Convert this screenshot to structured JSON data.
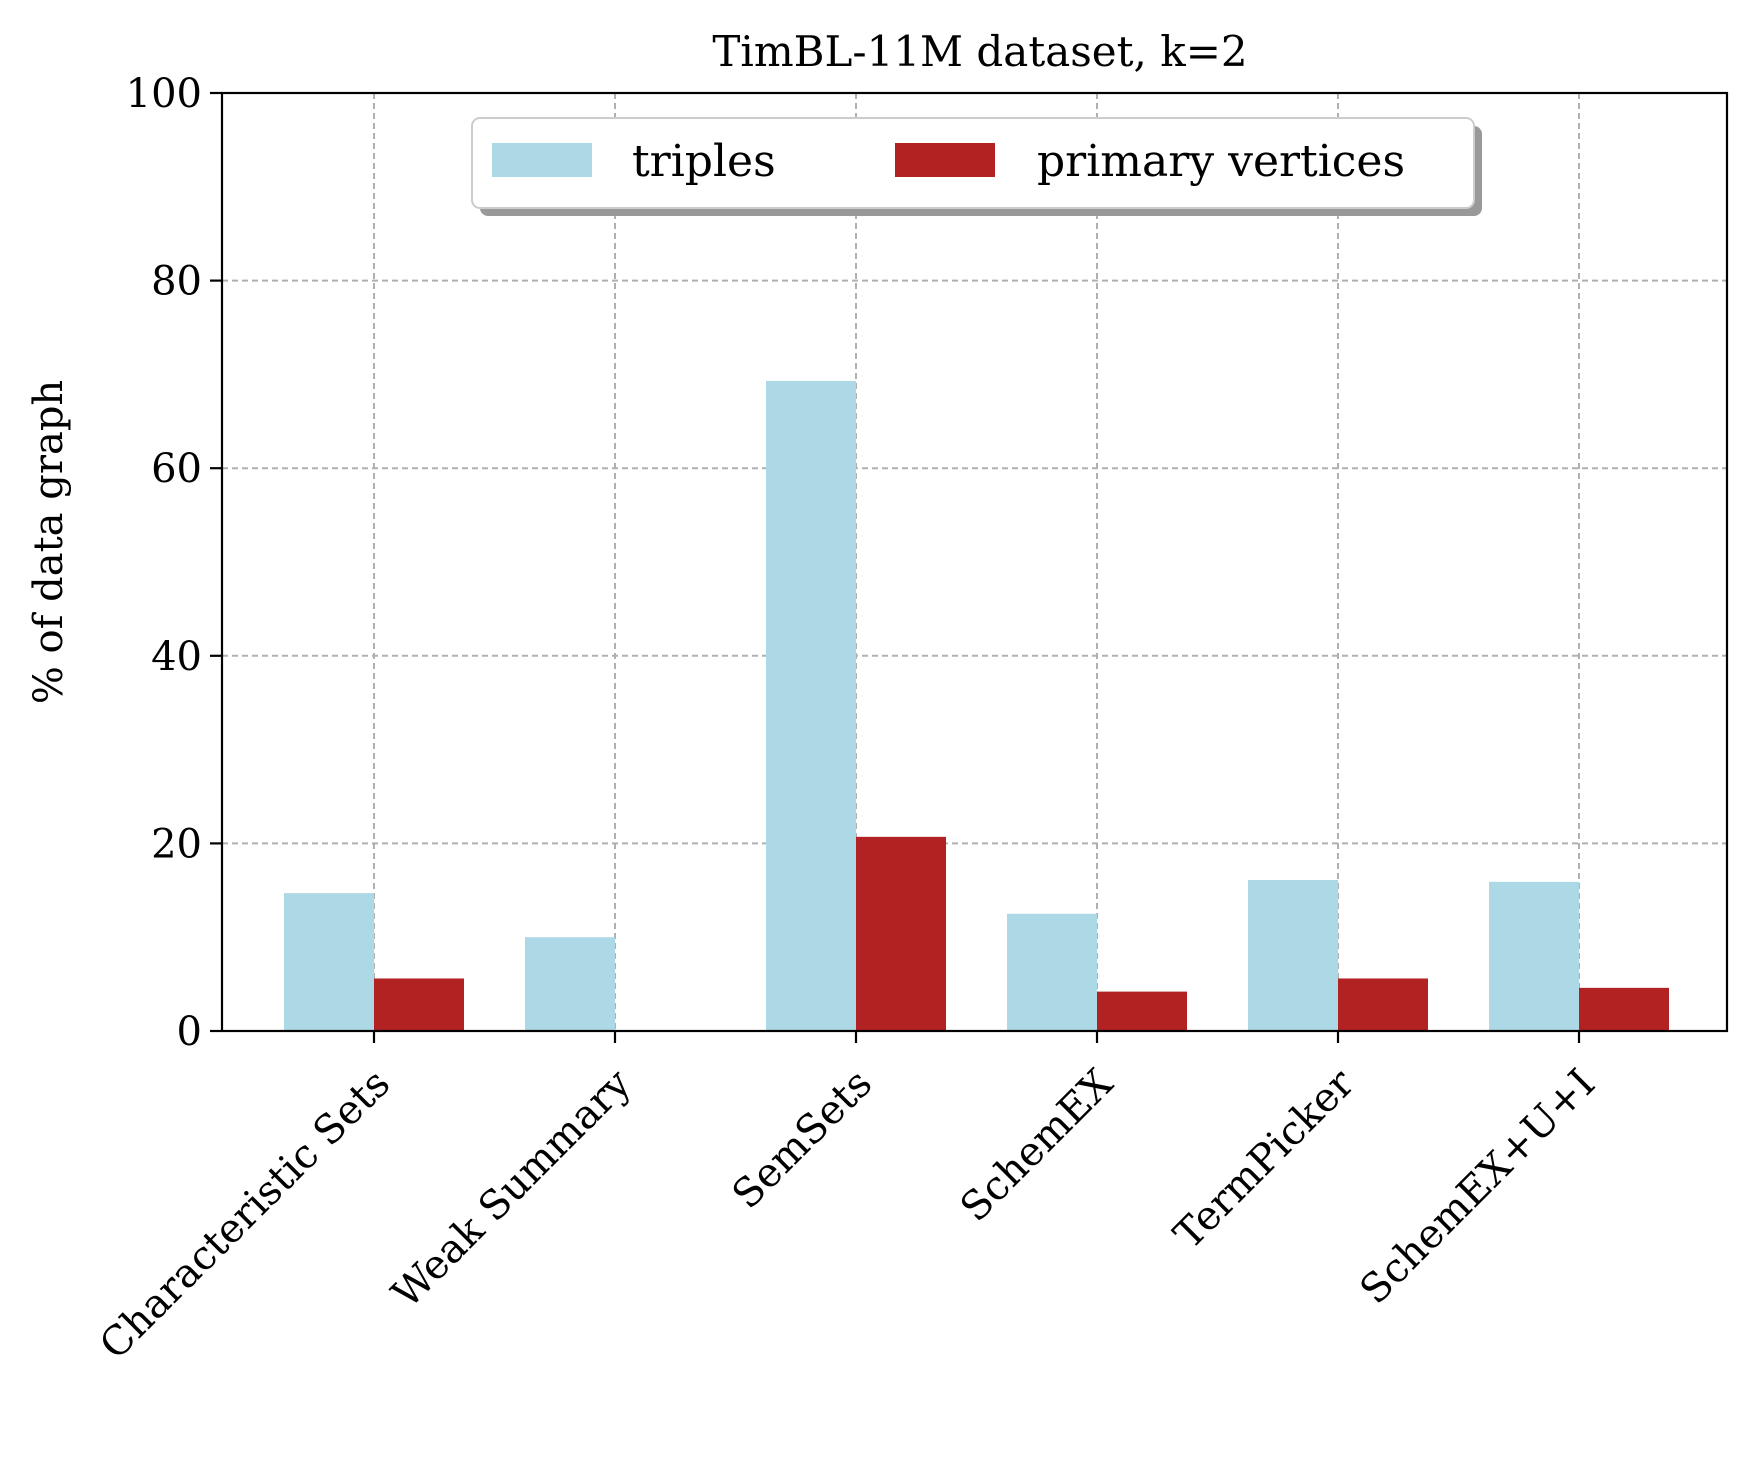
{
  "chart_data": {
    "type": "bar",
    "title": "TimBL-11M dataset, k=2",
    "xlabel": "",
    "ylabel": "% of data graph",
    "ylim": [
      0,
      100
    ],
    "yticks": [
      "0",
      "20",
      "40",
      "60",
      "80",
      "100"
    ],
    "grid": true,
    "legend_position": "top-center",
    "categories": [
      "Characteristic Sets",
      "Weak Summary",
      "SemSets",
      "SchemEX",
      "TermPicker",
      "SchemEX+U+I"
    ],
    "series": [
      {
        "name": "triples",
        "color": "#add8e6",
        "values": [
          14.7,
          10.0,
          69.3,
          12.5,
          16.1,
          15.9
        ]
      },
      {
        "name": "primary vertices",
        "color": "#b22222",
        "values": [
          5.6,
          0,
          20.7,
          4.2,
          5.6,
          4.6
        ]
      }
    ]
  }
}
